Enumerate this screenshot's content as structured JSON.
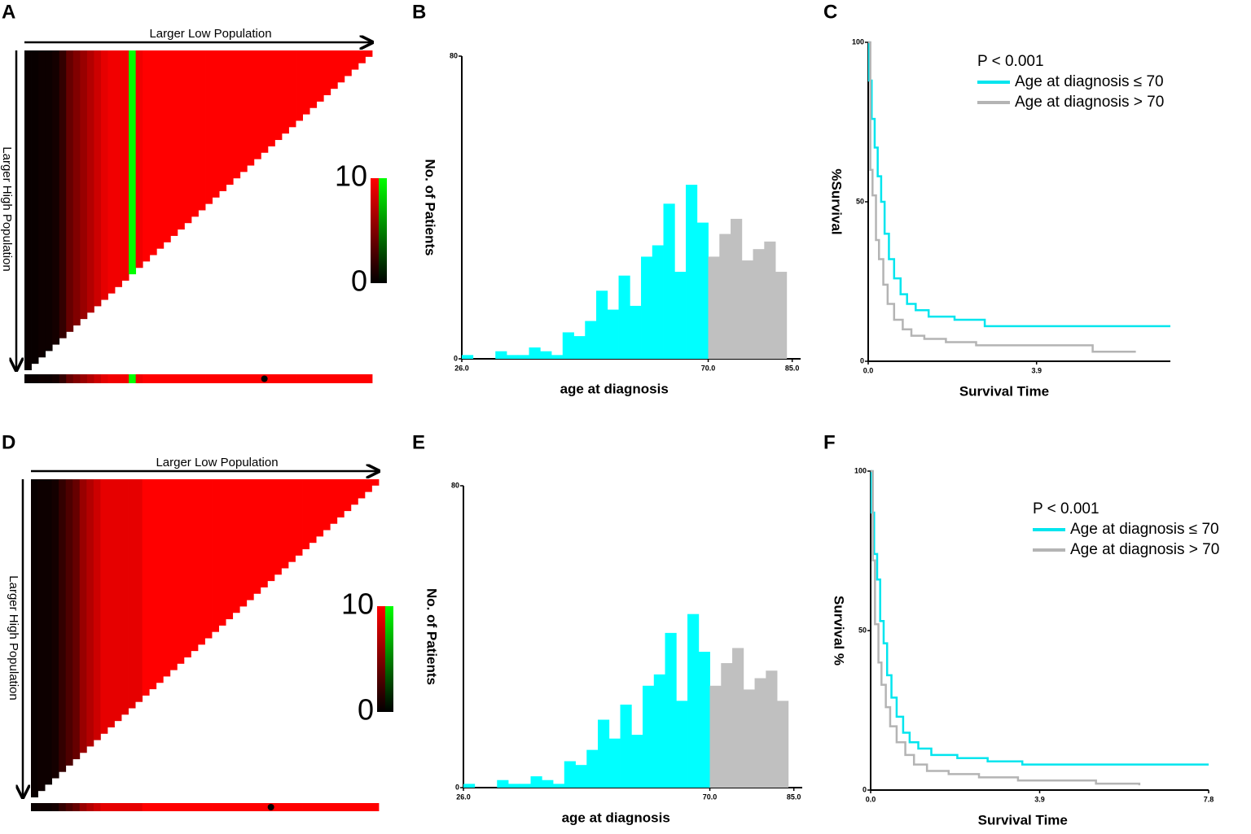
{
  "chart_data": [
    {
      "type": "heatmap",
      "panel": "A",
      "xlabel": "Larger Low Population",
      "ylabel": "Larger High Population",
      "values": [
        0.3,
        0.3,
        0.5,
        0.5,
        0.8,
        2,
        4,
        5,
        6,
        7,
        8,
        9,
        9.5,
        9.5,
        9.5,
        10,
        9.5,
        10,
        10,
        10,
        10,
        10,
        10,
        10,
        10,
        10,
        10,
        10,
        10,
        10,
        10,
        10,
        10,
        10,
        10,
        10,
        10,
        10,
        10,
        10,
        10,
        10,
        10,
        10,
        10,
        10,
        10,
        10,
        10,
        10
      ],
      "green_columns": [
        15
      ],
      "marker": 34,
      "clim": [
        0,
        10
      ],
      "colorbar_ticks": [
        0,
        10
      ],
      "colors": {
        "low": "#000000",
        "high": "#ff0000",
        "inverse": "#00ff00"
      }
    },
    {
      "type": "histogram",
      "panel": "B",
      "xlabel": "age at diagnosis",
      "ylabel": "No. of Patients",
      "bins": [
        26,
        28,
        30,
        32,
        34,
        36,
        38,
        40,
        42,
        44,
        46,
        48,
        50,
        52,
        54,
        56,
        58,
        60,
        62,
        64,
        66,
        68,
        70,
        72,
        74,
        76,
        78,
        80,
        82,
        84
      ],
      "values": [
        1,
        0,
        0,
        2,
        1,
        1,
        3,
        2,
        1,
        7,
        6,
        10,
        18,
        13,
        22,
        14,
        27,
        30,
        41,
        23,
        46,
        36,
        27,
        33,
        37,
        26,
        29,
        31,
        23
      ],
      "colors": [
        "#00ffff",
        "#00ffff",
        "#00ffff",
        "#00ffff",
        "#00ffff",
        "#00ffff",
        "#00ffff",
        "#00ffff",
        "#00ffff",
        "#00ffff",
        "#00ffff",
        "#00ffff",
        "#00ffff",
        "#00ffff",
        "#00ffff",
        "#00ffff",
        "#00ffff",
        "#00ffff",
        "#00ffff",
        "#00ffff",
        "#00ffff",
        "#00ffff",
        "#c0c0c0",
        "#c0c0c0",
        "#c0c0c0",
        "#c0c0c0",
        "#c0c0c0",
        "#c0c0c0",
        "#c0c0c0"
      ],
      "xlim": [
        26,
        86.5
      ],
      "xticks": [
        {
          "value": 26,
          "label": "26.0"
        },
        {
          "value": 70,
          "label": "70.0"
        },
        {
          "value": 85,
          "label": "85.0"
        }
      ],
      "ylim": [
        0,
        80
      ],
      "yticks": [
        0,
        80
      ]
    },
    {
      "type": "line",
      "panel": "C",
      "xlabel": "Survival Time",
      "ylabel": "%Survival",
      "annotation": "P < 0.001",
      "xlim": [
        0,
        7.0
      ],
      "xticks": [
        {
          "value": 0,
          "label": "0.0"
        },
        {
          "value": 3.9,
          "label": "3.9"
        }
      ],
      "ylim": [
        0,
        100
      ],
      "yticks": [
        0,
        50,
        100
      ],
      "series": [
        {
          "name": "Age at diagnosis ≤ 70",
          "color": "#00e5ee",
          "x": [
            0,
            0.02,
            0.08,
            0.15,
            0.22,
            0.3,
            0.38,
            0.48,
            0.6,
            0.75,
            0.9,
            1.1,
            1.4,
            2,
            2.7,
            3.5,
            7
          ],
          "values": [
            100,
            88,
            76,
            67,
            58,
            50,
            40,
            32,
            26,
            21,
            18,
            16,
            14,
            13,
            11,
            11,
            11
          ]
        },
        {
          "name": "Age at diagnosis > 70",
          "color": "#b4b4b4",
          "x": [
            0,
            0.05,
            0.1,
            0.18,
            0.25,
            0.35,
            0.45,
            0.6,
            0.8,
            1,
            1.3,
            1.8,
            2.5,
            3.4,
            5.2,
            6.2
          ],
          "values": [
            100,
            60,
            52,
            38,
            32,
            24,
            18,
            13,
            10,
            8,
            7,
            6,
            5,
            5,
            3,
            3
          ]
        }
      ]
    },
    {
      "type": "heatmap",
      "panel": "D",
      "xlabel": "Larger Low Population",
      "ylabel": "Larger High Population",
      "values": [
        0.3,
        0.5,
        0.5,
        0.8,
        2,
        3,
        4,
        6,
        7,
        8,
        9,
        9,
        9,
        9,
        9,
        9,
        10,
        10,
        10,
        10,
        10,
        10,
        10,
        10,
        10,
        10,
        10,
        10,
        10,
        10,
        10,
        10,
        10,
        10,
        10,
        10,
        10,
        10,
        10,
        10,
        10,
        10,
        10,
        10,
        10,
        10,
        10,
        10,
        10,
        10
      ],
      "green_columns": [],
      "marker": 34,
      "clim": [
        0,
        10
      ],
      "colorbar_ticks": [
        0,
        10
      ],
      "colors": {
        "low": "#000000",
        "high": "#ff0000",
        "inverse": "#00ff00"
      }
    },
    {
      "type": "histogram",
      "panel": "E",
      "xlabel": "age at diagnosis",
      "ylabel": "No. of Patients",
      "bins": [
        26,
        28,
        30,
        32,
        34,
        36,
        38,
        40,
        42,
        44,
        46,
        48,
        50,
        52,
        54,
        56,
        58,
        60,
        62,
        64,
        66,
        68,
        70,
        72,
        74,
        76,
        78,
        80,
        82,
        84
      ],
      "values": [
        1,
        0,
        0,
        2,
        1,
        1,
        3,
        2,
        1,
        7,
        6,
        10,
        18,
        13,
        22,
        14,
        27,
        30,
        41,
        23,
        46,
        36,
        27,
        33,
        37,
        26,
        29,
        31,
        23
      ],
      "colors": [
        "#00ffff",
        "#00ffff",
        "#00ffff",
        "#00ffff",
        "#00ffff",
        "#00ffff",
        "#00ffff",
        "#00ffff",
        "#00ffff",
        "#00ffff",
        "#00ffff",
        "#00ffff",
        "#00ffff",
        "#00ffff",
        "#00ffff",
        "#00ffff",
        "#00ffff",
        "#00ffff",
        "#00ffff",
        "#00ffff",
        "#00ffff",
        "#00ffff",
        "#c0c0c0",
        "#c0c0c0",
        "#c0c0c0",
        "#c0c0c0",
        "#c0c0c0",
        "#c0c0c0",
        "#c0c0c0"
      ],
      "xlim": [
        26,
        86.5
      ],
      "xticks": [
        {
          "value": 26,
          "label": "26.0"
        },
        {
          "value": 70,
          "label": "70.0"
        },
        {
          "value": 85,
          "label": "85.0"
        }
      ],
      "ylim": [
        0,
        80
      ],
      "yticks": [
        0,
        80
      ]
    },
    {
      "type": "line",
      "panel": "F",
      "xlabel": "Survival Time",
      "ylabel": "Survival %",
      "annotation": "P < 0.001",
      "xlim": [
        0,
        7.8
      ],
      "xticks": [
        {
          "value": 0,
          "label": "0.0"
        },
        {
          "value": 3.9,
          "label": "3.9"
        },
        {
          "value": 7.8,
          "label": "7.8"
        }
      ],
      "ylim": [
        0,
        100
      ],
      "yticks": [
        0,
        50,
        100
      ],
      "series": [
        {
          "name": "Age at diagnosis ≤ 70",
          "color": "#00e5ee",
          "x": [
            0,
            0.02,
            0.08,
            0.15,
            0.22,
            0.3,
            0.38,
            0.48,
            0.6,
            0.75,
            0.9,
            1.1,
            1.4,
            2,
            2.7,
            3.5,
            7.8
          ],
          "values": [
            100,
            87,
            74,
            66,
            53,
            46,
            36,
            29,
            23,
            18,
            15,
            13,
            11,
            10,
            9,
            8,
            8
          ]
        },
        {
          "name": "Age at diagnosis > 70",
          "color": "#b4b4b4",
          "x": [
            0,
            0.05,
            0.1,
            0.18,
            0.25,
            0.35,
            0.45,
            0.6,
            0.8,
            1,
            1.3,
            1.8,
            2.5,
            3.4,
            5.2,
            6.2
          ],
          "values": [
            100,
            72,
            52,
            40,
            33,
            26,
            20,
            15,
            11,
            8,
            6,
            5,
            4,
            3,
            2,
            1.5
          ]
        }
      ]
    }
  ]
}
